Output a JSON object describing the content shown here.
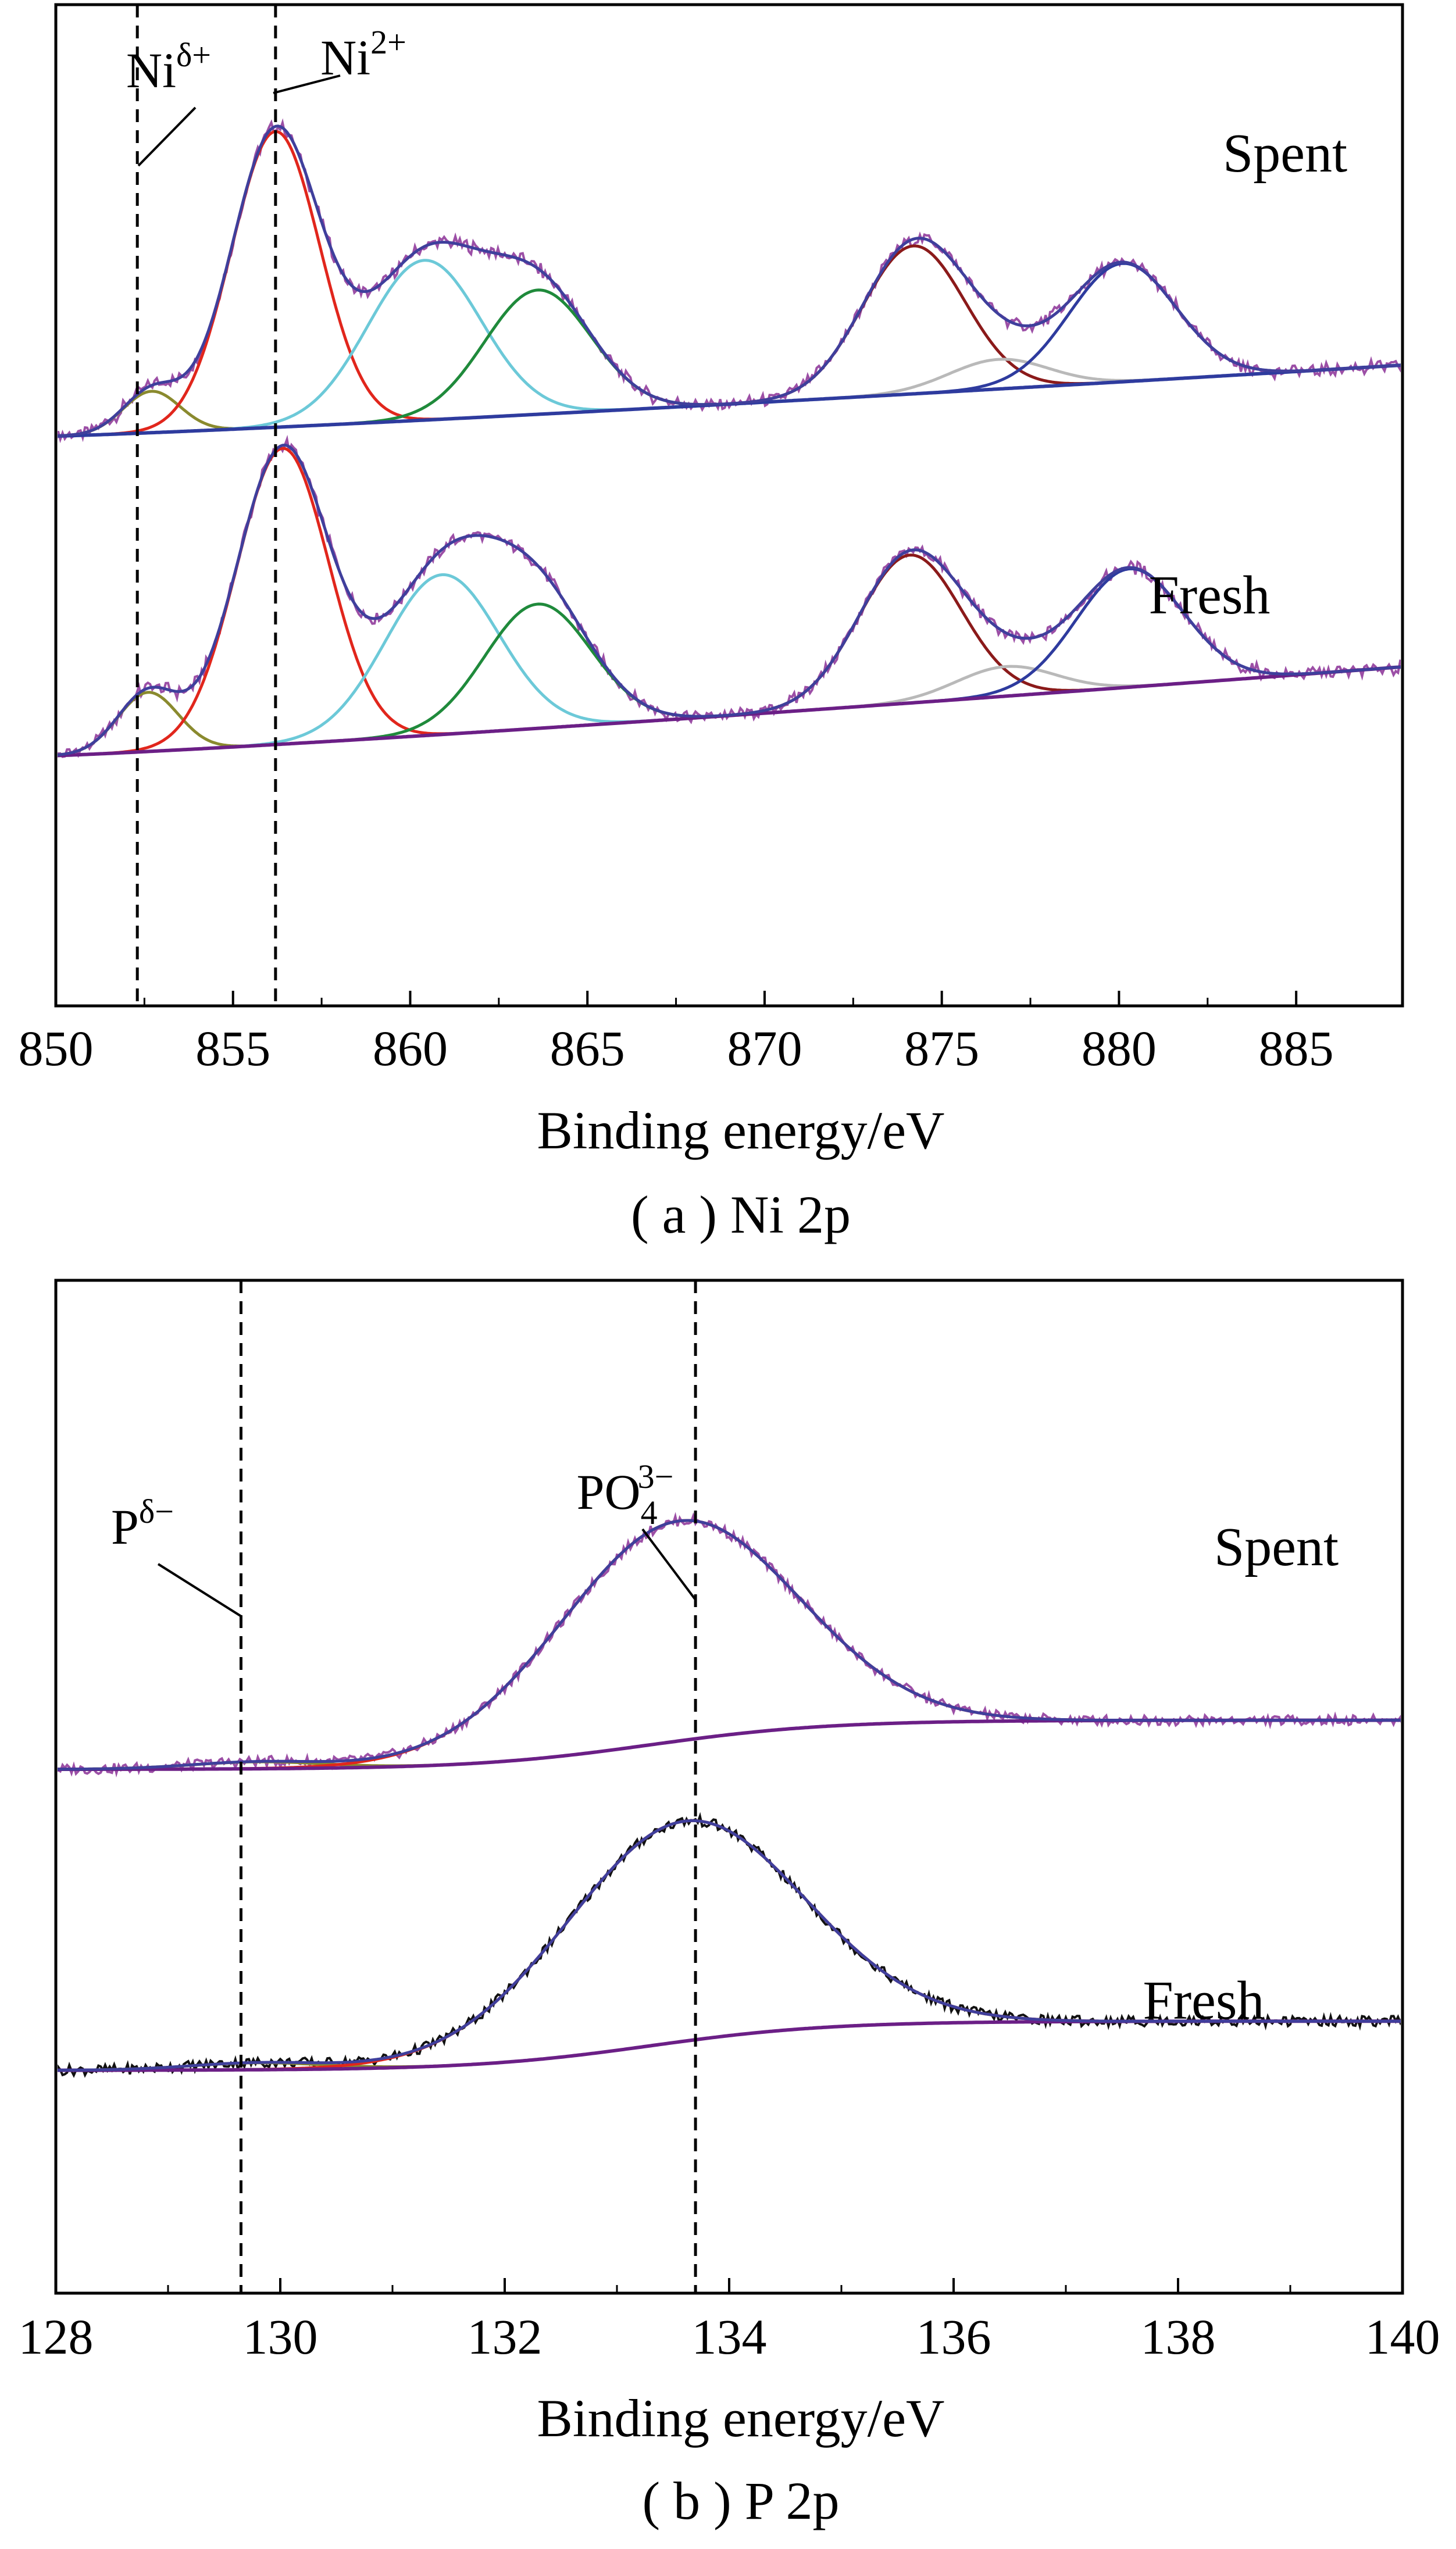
{
  "figure": {
    "panels": [
      {
        "id": "a",
        "caption": "( a ) Ni 2p"
      },
      {
        "id": "b",
        "caption": "( b ) P 2p"
      }
    ]
  },
  "chart_data": [
    {
      "type": "line",
      "panel": "( a ) Ni 2p",
      "xlabel": "Binding energy/eV",
      "ylabel": "",
      "xlim": [
        850,
        888
      ],
      "xticks": [
        850,
        855,
        860,
        865,
        870,
        875,
        880,
        885
      ],
      "y_axis_ticks_shown": false,
      "grid": false,
      "vlines": [
        {
          "x": 852.3,
          "label": "Ni",
          "sup": "δ+"
        },
        {
          "x": 856.2,
          "label": "Ni",
          "sup": "2+"
        }
      ],
      "samples": [
        {
          "name": "Spent",
          "offset": 0.54,
          "raw_color": "#9c4fa6",
          "baseline": {
            "start": 0.0,
            "end": 0.12,
            "color": "#2e3b9e"
          },
          "peaks": [
            {
              "center": 852.7,
              "height": 0.07,
              "sigma": 0.8,
              "color": "#8a8a2e"
            },
            {
              "center": 856.2,
              "height": 0.5,
              "sigma": 1.25,
              "color": "#e1261c"
            },
            {
              "center": 860.4,
              "height": 0.27,
              "sigma": 1.6,
              "color": "#6cc9d8"
            },
            {
              "center": 863.6,
              "height": 0.21,
              "sigma": 1.5,
              "color": "#1f8a3b"
            },
            {
              "center": 874.2,
              "height": 0.25,
              "sigma": 1.45,
              "color": "#8b1a1a"
            },
            {
              "center": 876.6,
              "height": 0.05,
              "sigma": 1.4,
              "color": "#b9b9b9"
            },
            {
              "center": 880.1,
              "height": 0.2,
              "sigma": 1.5,
              "color": "#2e3b9e"
            }
          ],
          "envelope_color": "#3f3f9c"
        },
        {
          "name": "Fresh",
          "offset": 0.0,
          "raw_color": "#9c4fa6",
          "baseline": {
            "start": 0.0,
            "end": 0.15,
            "color": "#6b1f86"
          },
          "peaks": [
            {
              "center": 852.6,
              "height": 0.1,
              "sigma": 0.85,
              "color": "#8a8a2e"
            },
            {
              "center": 856.4,
              "height": 0.5,
              "sigma": 1.3,
              "color": "#e1261c"
            },
            {
              "center": 860.9,
              "height": 0.27,
              "sigma": 1.6,
              "color": "#6cc9d8"
            },
            {
              "center": 863.6,
              "height": 0.21,
              "sigma": 1.5,
              "color": "#1f8a3b"
            },
            {
              "center": 874.1,
              "height": 0.25,
              "sigma": 1.45,
              "color": "#8b1a1a"
            },
            {
              "center": 876.8,
              "height": 0.05,
              "sigma": 1.4,
              "color": "#b9b9b9"
            },
            {
              "center": 880.3,
              "height": 0.2,
              "sigma": 1.5,
              "color": "#2e3b9e"
            }
          ],
          "envelope_color": "#3f3f9c"
        }
      ]
    },
    {
      "type": "line",
      "panel": "( b ) P 2p",
      "xlabel": "Binding energy/eV",
      "ylabel": "",
      "xlim": [
        128,
        140
      ],
      "xticks": [
        128,
        130,
        132,
        134,
        136,
        138,
        140
      ],
      "y_axis_ticks_shown": false,
      "grid": false,
      "vlines": [
        {
          "x": 129.65,
          "label": "P",
          "sup": "δ−"
        },
        {
          "x": 133.7,
          "label": "PO",
          "sub": "4",
          "sup": "3−"
        }
      ],
      "samples": [
        {
          "name": "Spent",
          "offset": 0.52,
          "raw_color": "#9c4fa6",
          "baseline": {
            "start": 0.0,
            "end": 0.085,
            "step_center": 133.3,
            "step_width": 0.8,
            "color": "#6b1f86"
          },
          "peaks": [
            {
              "center": 129.8,
              "height": 0.012,
              "sigma": 0.6,
              "color": "#8a8a2e"
            },
            {
              "center": 133.55,
              "height": 0.38,
              "sigma": 1.05,
              "color": "#e1261c"
            }
          ],
          "envelope_color": "#3f3f9c"
        },
        {
          "name": "Fresh",
          "offset": 0.0,
          "raw_color": "#111111",
          "baseline": {
            "start": 0.0,
            "end": 0.085,
            "step_center": 133.3,
            "step_width": 0.8,
            "color": "#6b1f86"
          },
          "peaks": [
            {
              "center": 129.8,
              "height": 0.012,
              "sigma": 0.6,
              "color": "#8a8a2e"
            },
            {
              "center": 133.6,
              "height": 0.38,
              "sigma": 1.05,
              "color": "#e1261c"
            }
          ],
          "envelope_color": "#3f3f9c"
        }
      ]
    }
  ]
}
